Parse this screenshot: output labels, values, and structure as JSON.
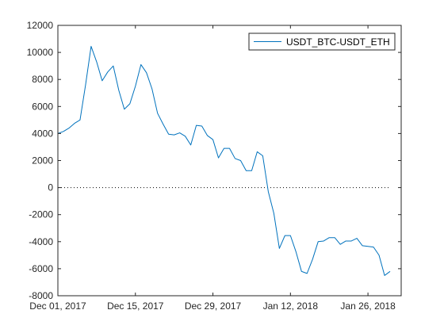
{
  "chart_data": {
    "type": "line",
    "x_axis_type": "date",
    "xlim": [
      "2017-12-01",
      "2018-02-01"
    ],
    "ylim": [
      -8000,
      12000
    ],
    "x_ticks": [
      {
        "date": "2017-12-01",
        "label": "Dec 01, 2017"
      },
      {
        "date": "2017-12-15",
        "label": "Dec 15, 2017"
      },
      {
        "date": "2017-12-29",
        "label": "Dec 29, 2017"
      },
      {
        "date": "2018-01-12",
        "label": "Jan 12, 2018"
      },
      {
        "date": "2018-01-26",
        "label": "Jan 26, 2018"
      }
    ],
    "y_ticks": [
      -8000,
      -6000,
      -4000,
      -2000,
      0,
      2000,
      4000,
      6000,
      8000,
      10000,
      12000
    ],
    "grid": false,
    "legend_position": "top-right",
    "zero_line": {
      "y": 0,
      "style": "dotted"
    },
    "series_color": "#0072BD",
    "series": [
      {
        "name": "USDT_BTC-USDT_ETH",
        "x": [
          "2017-12-01",
          "2017-12-02",
          "2017-12-03",
          "2017-12-04",
          "2017-12-05",
          "2017-12-06",
          "2017-12-07",
          "2017-12-08",
          "2017-12-09",
          "2017-12-10",
          "2017-12-11",
          "2017-12-12",
          "2017-12-13",
          "2017-12-14",
          "2017-12-15",
          "2017-12-16",
          "2017-12-17",
          "2017-12-18",
          "2017-12-19",
          "2017-12-20",
          "2017-12-21",
          "2017-12-22",
          "2017-12-23",
          "2017-12-24",
          "2017-12-25",
          "2017-12-26",
          "2017-12-27",
          "2017-12-28",
          "2017-12-29",
          "2017-12-30",
          "2017-12-31",
          "2018-01-01",
          "2018-01-02",
          "2018-01-03",
          "2018-01-04",
          "2018-01-05",
          "2018-01-06",
          "2018-01-07",
          "2018-01-08",
          "2018-01-09",
          "2018-01-10",
          "2018-01-11",
          "2018-01-12",
          "2018-01-13",
          "2018-01-14",
          "2018-01-15",
          "2018-01-16",
          "2018-01-17",
          "2018-01-18",
          "2018-01-19",
          "2018-01-20",
          "2018-01-21",
          "2018-01-22",
          "2018-01-23",
          "2018-01-24",
          "2018-01-25",
          "2018-01-26",
          "2018-01-27",
          "2018-01-28",
          "2018-01-29",
          "2018-01-30"
        ],
        "values": [
          4000,
          4150,
          4400,
          4750,
          5000,
          7600,
          10450,
          9300,
          7900,
          8550,
          9000,
          7200,
          5800,
          6200,
          7500,
          9100,
          8500,
          7300,
          5500,
          4700,
          3950,
          3900,
          4050,
          3800,
          3150,
          4600,
          4550,
          3850,
          3550,
          2200,
          2900,
          2900,
          2150,
          2000,
          1250,
          1250,
          2650,
          2350,
          -300,
          -1900,
          -4500,
          -3550,
          -3550,
          -4750,
          -6200,
          -6350,
          -5300,
          -4000,
          -3950,
          -3700,
          -3700,
          -4200,
          -3950,
          -3950,
          -3750,
          -4300,
          -4350,
          -4400,
          -5000,
          -6500,
          -6200
        ]
      }
    ]
  }
}
